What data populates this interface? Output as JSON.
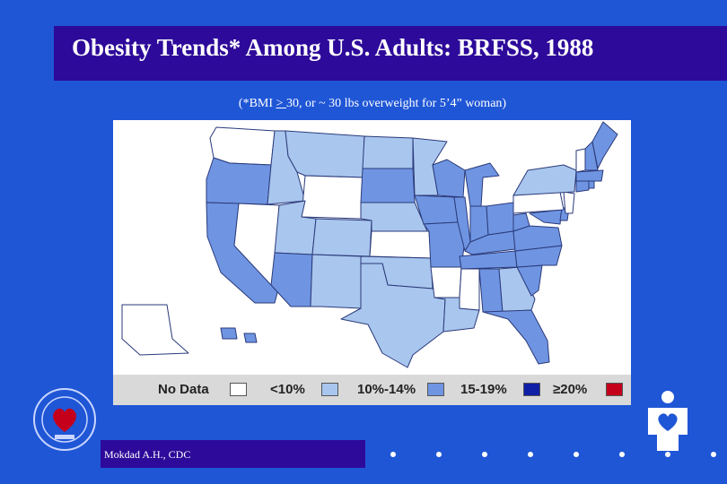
{
  "slide": {
    "title": "Obesity Trends* Among U.S. Adults: BRFSS, 1988",
    "subtitle_pre": "(*BMI ",
    "subtitle_ge": "> ",
    "subtitle_post": "30, or ~ 30 lbs overweight for 5’4” woman)",
    "credit": "Mokdad A.H., CDC",
    "footer_dots": 8
  },
  "colors": {
    "background": "#1f56d6",
    "title_bar": "#2d0a9a",
    "no_data": "#ffffff",
    "lt10": "#a9c6ee",
    "b10_14": "#6f95e2",
    "b15_19": "#0f1fa6",
    "ge20": "#c4001b",
    "border": "#2a3a7a"
  },
  "legend": [
    {
      "label": "No Data",
      "color": "#ffffff"
    },
    {
      "label": "<10%",
      "color": "#a9c6ee"
    },
    {
      "label": "10%-14%",
      "color": "#6f95e2"
    },
    {
      "label": "15-19%",
      "color": "#0f1fa6"
    },
    {
      "label": "≥20%",
      "color": "#c4001b"
    }
  ],
  "states": {
    "WA": "none",
    "OR": "10-14",
    "CA": "10-14",
    "NV": "none",
    "ID": "<10",
    "MT": "<10",
    "WY": "none",
    "UT": "<10",
    "AZ": "10-14",
    "CO": "<10",
    "NM": "<10",
    "ND": "<10",
    "SD": "10-14",
    "NE": "<10",
    "KS": "none",
    "OK": "<10",
    "TX": "<10",
    "MN": "<10",
    "IA": "10-14",
    "MO": "10-14",
    "AR": "none",
    "LA": "<10",
    "WI": "10-14",
    "IL": "10-14",
    "MI": "10-14",
    "IN": "10-14",
    "OH": "10-14",
    "KY": "10-14",
    "TN": "10-14",
    "MS": "none",
    "AL": "10-14",
    "GA": "<10",
    "FL": "10-14",
    "SC": "10-14",
    "NC": "10-14",
    "VA": "10-14",
    "WV": "10-14",
    "MD": "10-14",
    "DE": "10-14",
    "PA": "none",
    "NJ": "none",
    "NY": "<10",
    "CT": "10-14",
    "RI": "10-14",
    "MA": "10-14",
    "VT": "none",
    "NH": "10-14",
    "ME": "10-14",
    "AK": "none",
    "HI": "10-14"
  }
}
